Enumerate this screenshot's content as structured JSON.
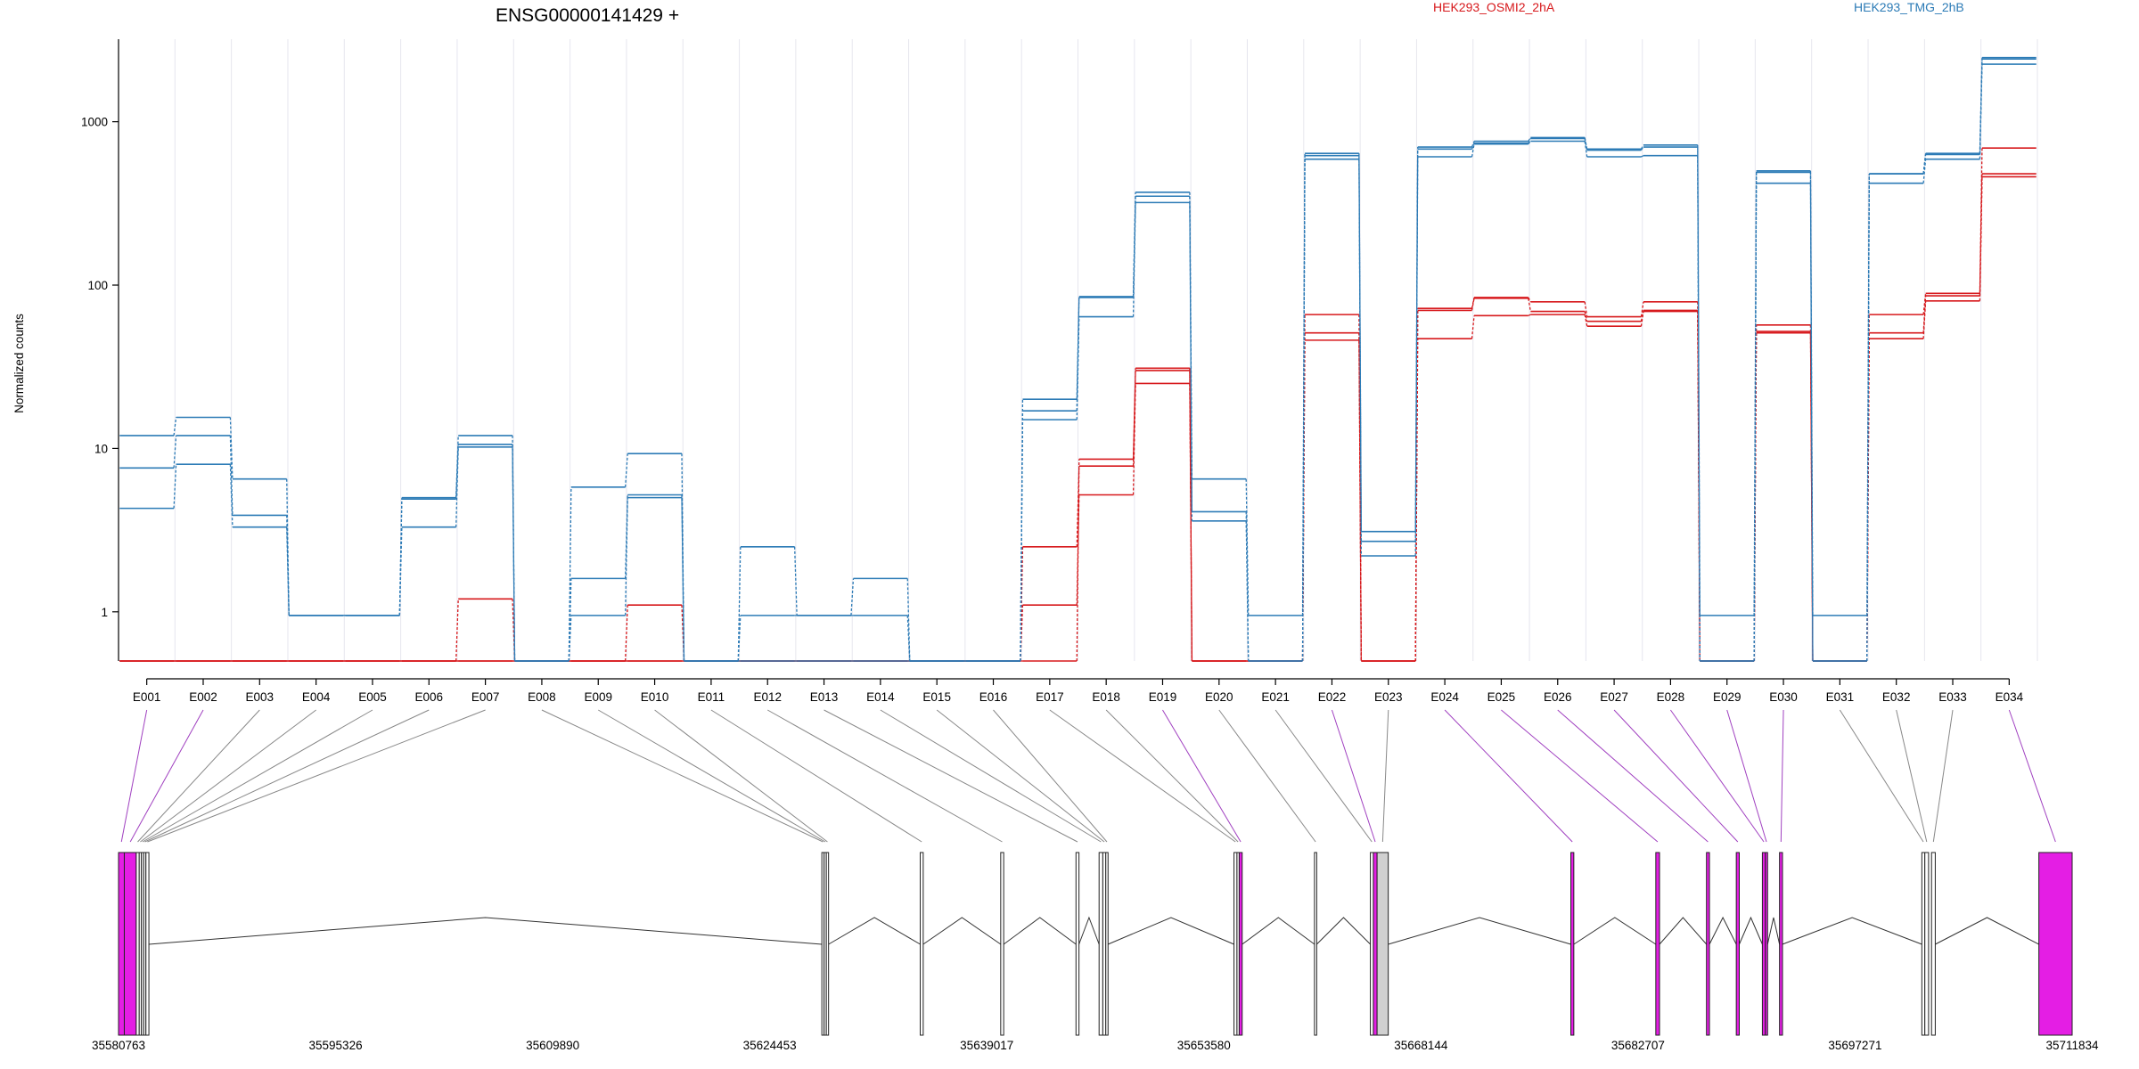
{
  "chart_data": {
    "type": "line",
    "title": "ENSG00000141429 +",
    "ylabel": "Normalized counts",
    "xlabel": "",
    "yscale": "log",
    "ylim": [
      0.5,
      3200
    ],
    "yticks": [
      1,
      10,
      100,
      1000
    ],
    "ytick_labels": [
      "1",
      "10",
      "100",
      "1000"
    ],
    "grid": "vertical, light",
    "legend": "top",
    "categories": [
      "E001",
      "E002",
      "E003",
      "E004",
      "E005",
      "E006",
      "E007",
      "E008",
      "E009",
      "E010",
      "E011",
      "E012",
      "E013",
      "E014",
      "E015",
      "E016",
      "E017",
      "E018",
      "E019",
      "E020",
      "E021",
      "E022",
      "E023",
      "E024",
      "E025",
      "E026",
      "E027",
      "E028",
      "E029",
      "E030",
      "E031",
      "E032",
      "E033",
      "E034"
    ],
    "conditions": [
      {
        "name": "HEK293_OSMI2_2hA",
        "color": "#d7191c"
      },
      {
        "name": "HEK293_TMG_2hB",
        "color": "#2c7bb6"
      }
    ],
    "series": [
      {
        "condition": "HEK293_OSMI2_2hA",
        "values": [
          0.5,
          0.5,
          0.5,
          0.5,
          0.5,
          0.5,
          1.2,
          0.5,
          0.5,
          1.1,
          0.5,
          0.5,
          0.5,
          0.5,
          0.5,
          0.5,
          1.1,
          5.2,
          25,
          0.5,
          0.5,
          46,
          0.5,
          47,
          65,
          66,
          56,
          69,
          0.5,
          51,
          0.5,
          47,
          80,
          460
        ]
      },
      {
        "condition": "HEK293_OSMI2_2hA",
        "values": [
          0.5,
          0.5,
          0.5,
          0.5,
          0.5,
          0.5,
          0.5,
          0.5,
          0.5,
          0.5,
          0.5,
          0.5,
          0.5,
          0.5,
          0.5,
          0.5,
          2.5,
          7.8,
          30,
          0.5,
          0.5,
          51,
          0.5,
          70,
          83,
          69,
          60,
          70,
          0.5,
          57,
          0.5,
          51,
          86,
          480
        ]
      },
      {
        "condition": "HEK293_OSMI2_2hA",
        "values": [
          0.5,
          0.5,
          0.5,
          0.5,
          0.5,
          0.5,
          0.5,
          0.5,
          0.5,
          0.5,
          0.5,
          0.5,
          0.5,
          0.5,
          0.5,
          0.5,
          0.5,
          8.6,
          31,
          0.5,
          0.5,
          66,
          0.5,
          72,
          84,
          79,
          64,
          79,
          0.5,
          52,
          0.5,
          66,
          89,
          690
        ]
      },
      {
        "condition": "HEK293_TMG_2hB",
        "values": [
          4.3,
          8,
          3.3,
          0.95,
          0.95,
          3.3,
          10.2,
          0.5,
          0.95,
          5,
          0.5,
          0.5,
          0.5,
          0.5,
          0.5,
          0.5,
          15,
          64,
          320,
          3.6,
          0.5,
          590,
          2.2,
          610,
          730,
          760,
          610,
          620,
          0.5,
          420,
          0.5,
          420,
          590,
          2250
        ]
      },
      {
        "condition": "HEK293_TMG_2hB",
        "values": [
          7.6,
          12,
          3.9,
          0.95,
          0.95,
          4.9,
          10.6,
          0.5,
          1.6,
          5.2,
          0.5,
          0.95,
          0.95,
          0.95,
          0.5,
          0.5,
          17,
          84,
          350,
          4.1,
          0.5,
          620,
          2.7,
          680,
          740,
          790,
          670,
          700,
          0.5,
          490,
          0.5,
          480,
          630,
          2420
        ]
      },
      {
        "condition": "HEK293_TMG_2hB",
        "values": [
          12,
          15.5,
          6.5,
          0.95,
          0.95,
          5,
          12,
          0.5,
          5.8,
          9.3,
          0.5,
          2.5,
          0.95,
          1.6,
          0.5,
          0.5,
          20,
          85,
          370,
          6.5,
          0.95,
          640,
          3.1,
          700,
          760,
          800,
          680,
          720,
          0.95,
          500,
          0.95,
          480,
          640,
          2470
        ]
      }
    ],
    "gene_model": {
      "coordinate_labels": [
        "35580763",
        "35595326",
        "35609890",
        "35624453",
        "35639017",
        "35653580",
        "35668144",
        "35682707",
        "35697271",
        "35711834"
      ],
      "range": [
        35580763,
        35711834
      ],
      "exons": [
        {
          "id": "E001",
          "start": 35580763,
          "end": 35581150,
          "differential": true
        },
        {
          "id": "E002",
          "start": 35581150,
          "end": 35581950,
          "differential": true
        },
        {
          "id": "E003",
          "start": 35581950,
          "end": 35582150,
          "differential": false
        },
        {
          "id": "E004",
          "start": 35582150,
          "end": 35582300,
          "differential": false
        },
        {
          "id": "E005",
          "start": 35582300,
          "end": 35582450,
          "differential": false
        },
        {
          "id": "E006",
          "start": 35582450,
          "end": 35582600,
          "differential": false
        },
        {
          "id": "E007",
          "start": 35582600,
          "end": 35582800,
          "differential": false
        },
        {
          "id": "E008",
          "start": 35627950,
          "end": 35628100,
          "differential": false
        },
        {
          "id": "E009",
          "start": 35628100,
          "end": 35628250,
          "differential": false
        },
        {
          "id": "E010",
          "start": 35628250,
          "end": 35628400,
          "differential": false
        },
        {
          "id": "E011",
          "start": 35634550,
          "end": 35634750,
          "differential": false
        },
        {
          "id": "E012",
          "start": 35639950,
          "end": 35640150,
          "differential": false
        },
        {
          "id": "E013",
          "start": 35645000,
          "end": 35645200,
          "differential": false
        },
        {
          "id": "E014",
          "start": 35646550,
          "end": 35646800,
          "differential": false
        },
        {
          "id": "E015",
          "start": 35646800,
          "end": 35647000,
          "differential": false
        },
        {
          "id": "E016",
          "start": 35647000,
          "end": 35647150,
          "differential": false
        },
        {
          "id": "E017",
          "start": 35655600,
          "end": 35655800,
          "differential": false
        },
        {
          "id": "E018",
          "start": 35655800,
          "end": 35655950,
          "differential": false
        },
        {
          "id": "E019",
          "start": 35655950,
          "end": 35656150,
          "differential": true
        },
        {
          "id": "E020",
          "start": 35661000,
          "end": 35661150,
          "differential": false
        },
        {
          "id": "E021",
          "start": 35664750,
          "end": 35664950,
          "differential": false
        },
        {
          "id": "E022",
          "start": 35664950,
          "end": 35665200,
          "differential": true
        },
        {
          "id": "E023",
          "start": 35665200,
          "end": 35665950,
          "differential": false
        },
        {
          "id": "E024",
          "start": 35678200,
          "end": 35678400,
          "differential": true
        },
        {
          "id": "E025",
          "start": 35683900,
          "end": 35684150,
          "differential": true
        },
        {
          "id": "E026",
          "start": 35687300,
          "end": 35687500,
          "differential": true
        },
        {
          "id": "E027",
          "start": 35689300,
          "end": 35689500,
          "differential": true
        },
        {
          "id": "E028",
          "start": 35691050,
          "end": 35691250,
          "differential": true
        },
        {
          "id": "E029",
          "start": 35691250,
          "end": 35691400,
          "differential": true
        },
        {
          "id": "E030",
          "start": 35692200,
          "end": 35692400,
          "differential": true
        },
        {
          "id": "E031",
          "start": 35701750,
          "end": 35701950,
          "differential": false
        },
        {
          "id": "E032",
          "start": 35701950,
          "end": 35702200,
          "differential": false
        },
        {
          "id": "E033",
          "start": 35702400,
          "end": 35702650,
          "differential": false
        },
        {
          "id": "E034",
          "start": 35709600,
          "end": 35711834,
          "differential": true
        }
      ],
      "shaded_exon": "E023",
      "colors": {
        "differential": "#e41ee4",
        "normal": "#ffffff",
        "shaded": "#d0d0d0"
      }
    }
  }
}
